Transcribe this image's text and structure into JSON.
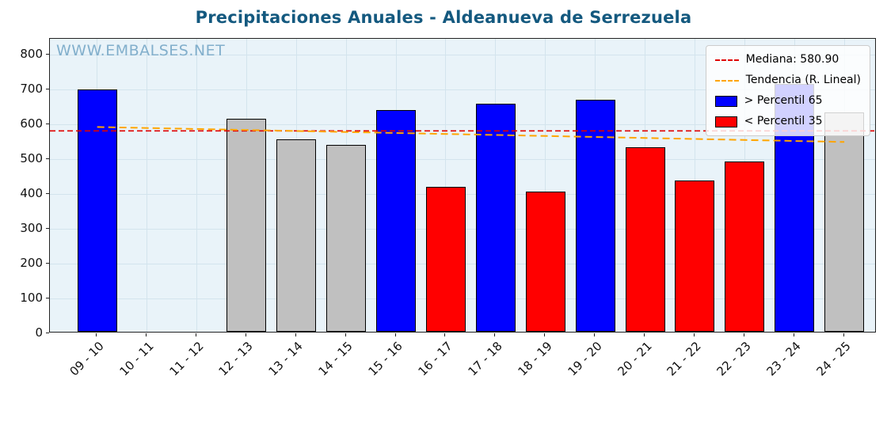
{
  "chart_data": {
    "type": "bar",
    "title": "Precipitaciones Anuales - Aldeanueva de Serrezuela",
    "watermark": "WWW.EMBALSES.NET",
    "categories": [
      "09 - 10",
      "10 - 11",
      "11 - 12",
      "12 - 13",
      "13 - 14",
      "14 - 15",
      "15 - 16",
      "16 - 17",
      "17 - 18",
      "18 - 19",
      "19 - 20",
      "20 - 21",
      "21 - 22",
      "22 - 23",
      "23 - 24",
      "24 - 25"
    ],
    "values": [
      695,
      null,
      null,
      611,
      553,
      537,
      636,
      416,
      655,
      402,
      666,
      529,
      434,
      489,
      710,
      629
    ],
    "bar_colors": [
      "#0000ff",
      null,
      null,
      "#c0c0c0",
      "#c0c0c0",
      "#c0c0c0",
      "#0000ff",
      "#ff0000",
      "#0000ff",
      "#ff0000",
      "#0000ff",
      "#ff0000",
      "#ff0000",
      "#ff0000",
      "#0000ff",
      "#c0c0c0"
    ],
    "median": 580.9,
    "trend": {
      "start": 592,
      "end": 549
    },
    "ylim": [
      0,
      845
    ],
    "yticks": [
      0,
      100,
      200,
      300,
      400,
      500,
      600,
      700,
      800
    ],
    "xlabel": "",
    "ylabel": "",
    "grid": true,
    "legend_position": "top-right",
    "legend": [
      {
        "label": "Mediana: 580.90",
        "swatch": "line",
        "color": "#e00000"
      },
      {
        "label": "Tendencia (R. Lineal)",
        "swatch": "line",
        "color": "#ffa500"
      },
      {
        "label": "> Percentil 65",
        "swatch": "patch",
        "color": "#0000ff"
      },
      {
        "label": "< Percentil 35",
        "swatch": "patch",
        "color": "#ff0000"
      }
    ],
    "colors": {
      "title": "#14597f",
      "watermark": "#82afcc",
      "plot_bg": "#e9f3f9",
      "grid": "#d3e4ed",
      "median_line": "#e00000",
      "trend_line": "#ffa500",
      "blue_bar": "#0000ff",
      "red_bar": "#ff0000",
      "gray_bar": "#c0c0c0"
    }
  }
}
